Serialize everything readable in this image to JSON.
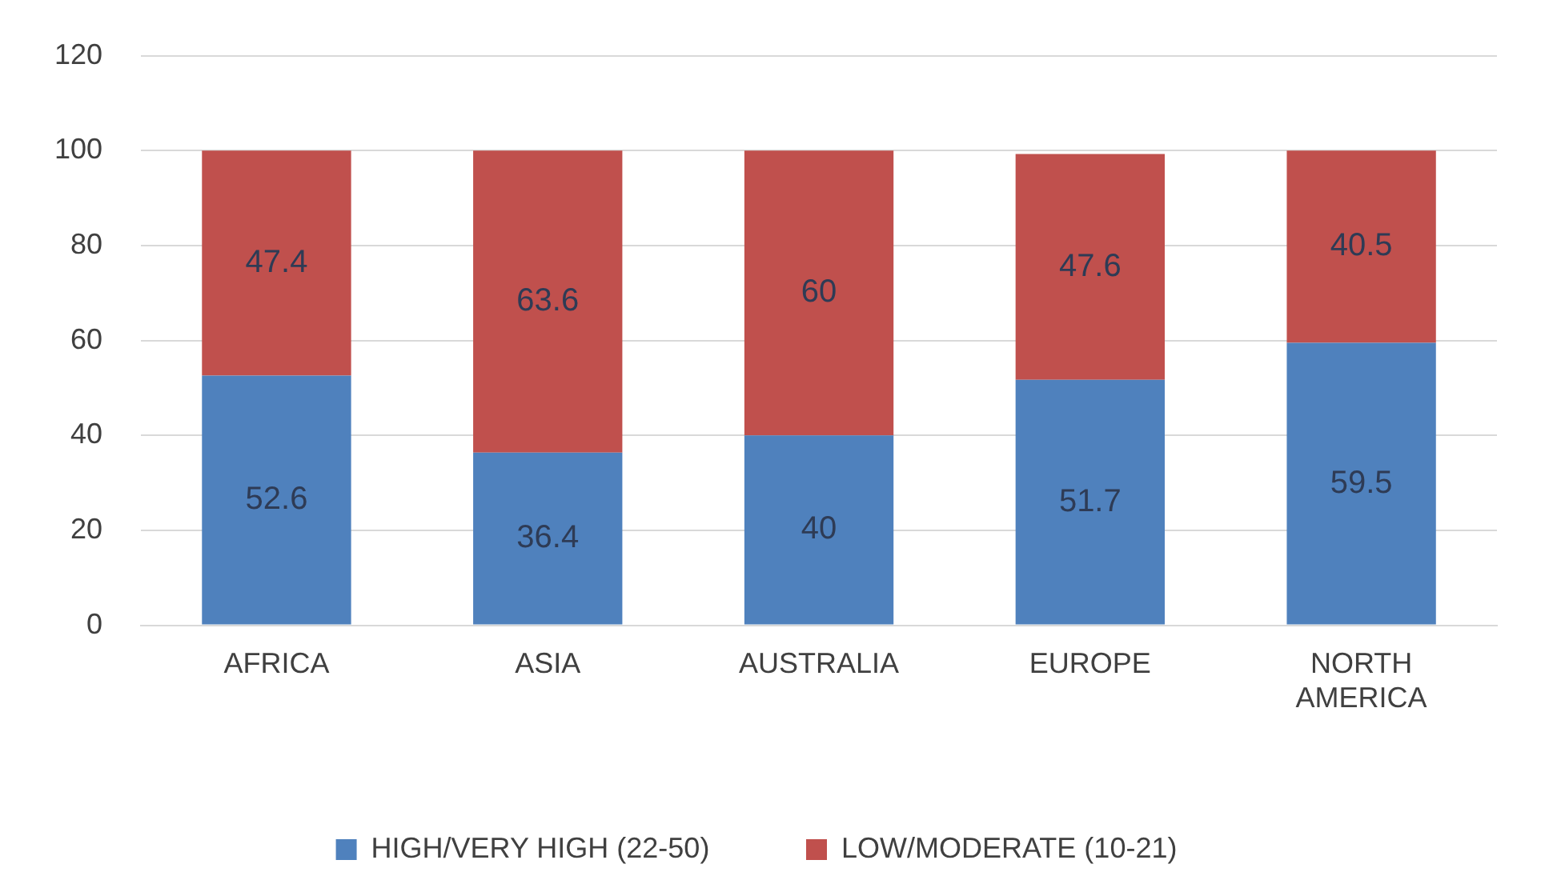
{
  "chart_data": {
    "type": "bar",
    "stacked": true,
    "categories": [
      "AFRICA",
      "ASIA",
      "AUSTRALIA",
      "EUROPE",
      "NORTH AMERICA"
    ],
    "series": [
      {
        "name": "HIGH/VERY HIGH (22-50)",
        "color": "#4f81bd",
        "values": [
          52.6,
          36.4,
          40,
          51.7,
          59.5
        ]
      },
      {
        "name": "LOW/MODERATE (10-21)",
        "color": "#c0504d",
        "values": [
          47.4,
          63.6,
          60,
          47.6,
          40.5
        ]
      }
    ],
    "ylim": [
      0,
      120
    ],
    "yticks": [
      0,
      20,
      40,
      60,
      80,
      100,
      120
    ],
    "grid": "y",
    "legend": "bottom",
    "data_labels": true
  }
}
